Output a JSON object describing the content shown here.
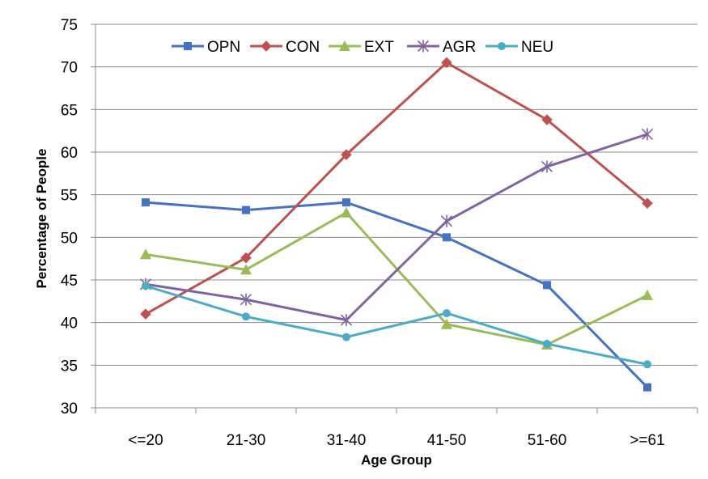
{
  "chart_data": {
    "type": "line",
    "title": "",
    "xlabel": "Age Group",
    "ylabel": "Percentage of People",
    "categories": [
      "<=20",
      "21-30",
      "31-40",
      "41-50",
      "51-60",
      ">=61"
    ],
    "ylim": [
      30,
      75
    ],
    "yticks": [
      "30",
      "35",
      "40",
      "45",
      "50",
      "55",
      "60",
      "65",
      "70",
      "75"
    ],
    "grid": "horizontal",
    "legend_position": "top",
    "series": [
      {
        "name": "OPN",
        "color": "#4472C4",
        "marker": "square",
        "values": [
          54.1,
          53.2,
          54.1,
          50.0,
          44.4,
          32.4
        ]
      },
      {
        "name": "CON",
        "color": "#C0504D",
        "marker": "diamond",
        "values": [
          41.0,
          47.6,
          59.7,
          70.5,
          63.8,
          54.0
        ]
      },
      {
        "name": "EXT",
        "color": "#9BBB59",
        "marker": "triangle",
        "values": [
          48.0,
          46.2,
          52.9,
          39.8,
          37.4,
          43.2
        ]
      },
      {
        "name": "AGR",
        "color": "#8064A2",
        "marker": "star",
        "values": [
          44.5,
          42.7,
          40.3,
          51.9,
          58.3,
          62.1
        ]
      },
      {
        "name": "NEU",
        "color": "#4BACC6",
        "marker": "circle",
        "values": [
          44.3,
          40.7,
          38.3,
          41.1,
          37.5,
          35.1
        ]
      }
    ]
  }
}
